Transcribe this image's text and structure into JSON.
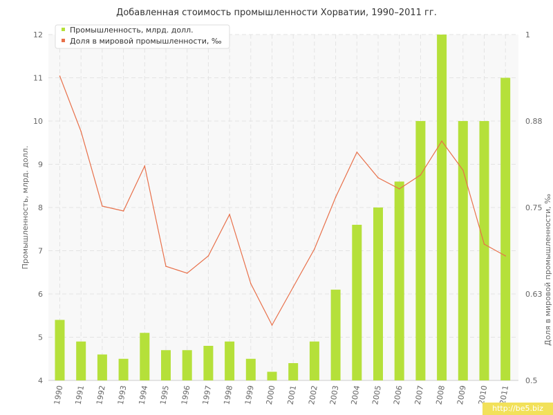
{
  "chart_data": {
    "type": "bar",
    "title": "Добавленная стоимость промышленности Хорватии, 1990–2011 гг.",
    "categories": [
      "1990",
      "1991",
      "1992",
      "1993",
      "1994",
      "1995",
      "1996",
      "1997",
      "1998",
      "1999",
      "2000",
      "2001",
      "2002",
      "2003",
      "2004",
      "2005",
      "2006",
      "2007",
      "2008",
      "2009",
      "2010",
      "2011"
    ],
    "series": [
      {
        "name": "Промышленность, млрд. долл.",
        "type": "bar",
        "axis": "left",
        "color": "#b5e03a",
        "values": [
          5.4,
          4.9,
          4.6,
          4.5,
          5.1,
          4.7,
          4.7,
          4.8,
          4.9,
          4.5,
          4.2,
          4.4,
          4.9,
          6.1,
          7.6,
          8.0,
          8.6,
          10.0,
          12.0,
          10.0,
          10.0,
          11.0
        ]
      },
      {
        "name": "Доля в мировой промышленности, ‰",
        "type": "line",
        "axis": "right",
        "color": "#e8704a",
        "values": [
          0.94,
          0.86,
          0.752,
          0.745,
          0.81,
          0.665,
          0.655,
          0.68,
          0.74,
          0.64,
          0.58,
          0.635,
          0.69,
          0.765,
          0.83,
          0.793,
          0.777,
          0.797,
          0.846,
          0.804,
          0.697,
          0.68
        ]
      }
    ],
    "ylabel": "Промышленность, млрд. долл.",
    "y2label": "Доля в мировой промышленности, ‰",
    "ylim": [
      4,
      12
    ],
    "y2lim": [
      0.5,
      1
    ],
    "yticks": [
      "4",
      "5",
      "6",
      "7",
      "8",
      "9",
      "10",
      "11",
      "12"
    ],
    "y2ticks": [
      {
        "value": 0.5,
        "label": "0.5"
      },
      {
        "value": 0.625,
        "label": "0.63"
      },
      {
        "value": 0.75,
        "label": "0.75"
      },
      {
        "value": 0.875,
        "label": "0.88"
      },
      {
        "value": 1.0,
        "label": "1"
      }
    ],
    "grid": true,
    "legend": "top-left",
    "background": "#f8f8f8",
    "watermark": "http://be5.biz"
  }
}
